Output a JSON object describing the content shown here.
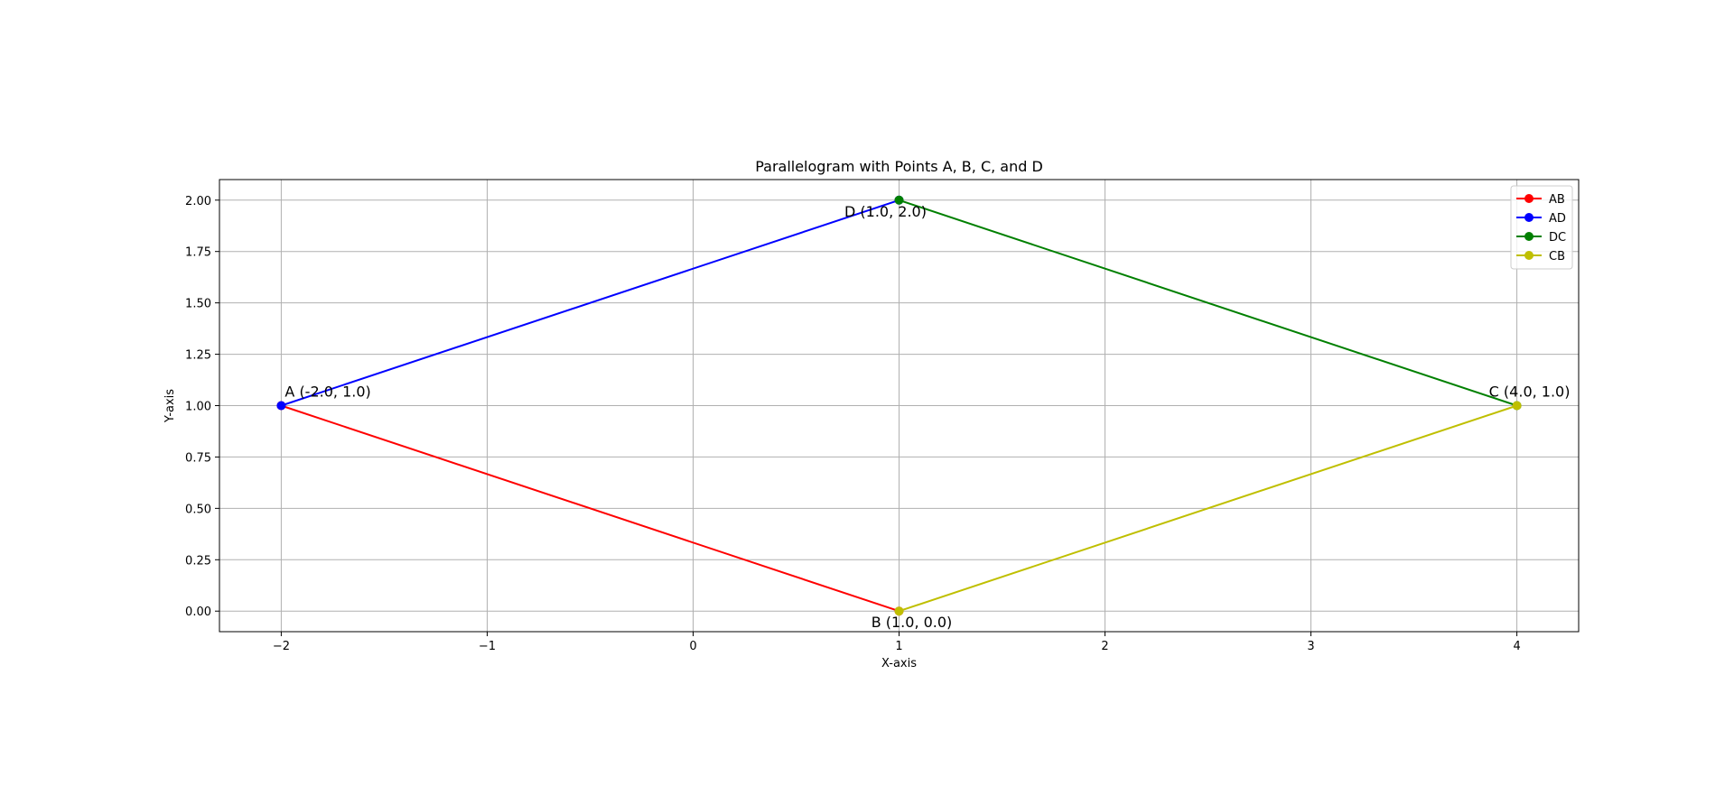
{
  "chart_data": {
    "type": "line",
    "title": "Parallelogram with Points A, B, C, and D",
    "xlabel": "X-axis",
    "ylabel": "Y-axis",
    "xlim": [
      -2.3,
      4.3
    ],
    "ylim": [
      -0.1,
      2.1
    ],
    "xticks": [
      -2,
      -1,
      0,
      1,
      2,
      3,
      4
    ],
    "xtick_labels": [
      "−2",
      "−1",
      "0",
      "1",
      "2",
      "3",
      "4"
    ],
    "yticks": [
      0,
      0.25,
      0.5,
      0.75,
      1.0,
      1.25,
      1.5,
      1.75,
      2.0
    ],
    "ytick_labels": [
      "0.00",
      "0.25",
      "0.50",
      "0.75",
      "1.00",
      "1.25",
      "1.50",
      "1.75",
      "2.00"
    ],
    "grid": true,
    "legend_position": "top-right",
    "series": [
      {
        "name": "AB",
        "color": "#ff0000",
        "x": [
          -2,
          1
        ],
        "y": [
          1,
          0
        ]
      },
      {
        "name": "AD",
        "color": "#0000ff",
        "x": [
          -2,
          1
        ],
        "y": [
          1,
          2
        ]
      },
      {
        "name": "DC",
        "color": "#008000",
        "x": [
          1,
          4
        ],
        "y": [
          2,
          1
        ]
      },
      {
        "name": "CB",
        "color": "#bfbf00",
        "x": [
          4,
          1
        ],
        "y": [
          1,
          0
        ]
      }
    ],
    "annotations": [
      {
        "text": "A (-2.0, 1.0)",
        "x": -2,
        "y": 1,
        "anchor": "start",
        "placement": "above-right"
      },
      {
        "text": "B (1.0, 0.0)",
        "x": 1,
        "y": 0,
        "anchor": "middle",
        "placement": "below"
      },
      {
        "text": "C (4.0, 1.0)",
        "x": 4,
        "y": 1,
        "anchor": "middle",
        "placement": "above"
      },
      {
        "text": "D (1.0, 2.0)",
        "x": 1,
        "y": 2,
        "anchor": "middle",
        "placement": "below-left"
      }
    ]
  }
}
